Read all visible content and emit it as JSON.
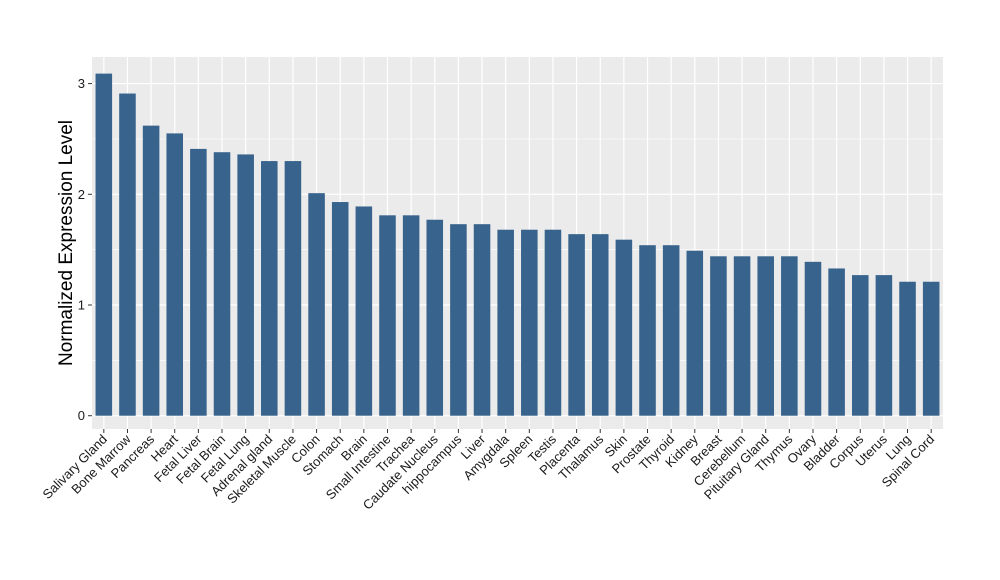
{
  "chart_data": {
    "type": "bar",
    "title": "",
    "xlabel": "",
    "ylabel": "Normalized Expression Level",
    "ylim": [
      -0.12,
      3.24
    ],
    "yticks": [
      0,
      1,
      2,
      3
    ],
    "grid": true,
    "legend": "none",
    "colors": {
      "bar": "#37638c",
      "panel": "#ebebeb",
      "grid": "#ffffff"
    },
    "categories": [
      "Salivary Gland",
      "Bone Marrow",
      "Pancreas",
      "Heart",
      "Fetal Liver",
      "Fetal Brain",
      "Fetal Lung",
      "Adrenal gland",
      "Skeletal Muscle",
      "Colon",
      "Stomach",
      "Brain",
      "Small Intestine",
      "Trachea",
      "Caudate Nucleus",
      "hippocampus",
      "Liver",
      "Amygdala",
      "Spleen",
      "Testis",
      "Placenta",
      "Thalamus",
      "Skin",
      "Prostate",
      "Thyroid",
      "Kidney",
      "Breast",
      "Cerebellum",
      "Pituitary Gland",
      "Thymus",
      "Ovary",
      "Bladder",
      "Corpus",
      "Uterus",
      "Lung",
      "Spinal Cord"
    ],
    "values": [
      3.09,
      2.91,
      2.62,
      2.55,
      2.41,
      2.38,
      2.36,
      2.3,
      2.3,
      2.01,
      1.93,
      1.89,
      1.81,
      1.81,
      1.77,
      1.73,
      1.73,
      1.68,
      1.68,
      1.68,
      1.64,
      1.64,
      1.59,
      1.54,
      1.54,
      1.49,
      1.44,
      1.44,
      1.44,
      1.44,
      1.39,
      1.33,
      1.27,
      1.27,
      1.21,
      1.21
    ]
  }
}
